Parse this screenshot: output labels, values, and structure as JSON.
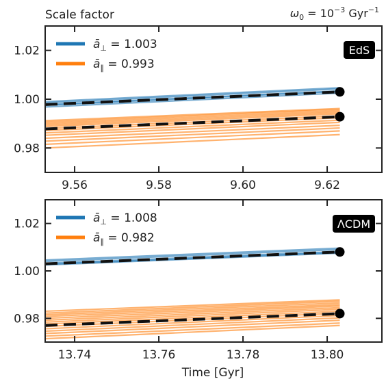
{
  "header": {
    "ylabel": "Scale factor",
    "omega_prefix": "ω",
    "omega_sub": "0",
    "omega_mid": " = 10",
    "omega_exp": "−3",
    "omega_unit": " Gyr",
    "omega_unit_exp": "−1"
  },
  "xlabel": "Time [Gyr]",
  "colors": {
    "perp": "#1f77b4",
    "par": "#ff7f0e",
    "mean": "#111111",
    "marker": "#000000"
  },
  "chart_data": [
    {
      "type": "line",
      "badge": "EdS",
      "xlim": [
        9.553,
        9.633
      ],
      "ylim": [
        0.97,
        1.03
      ],
      "xticks": [
        "9.56",
        "9.58",
        "9.60",
        "9.62"
      ],
      "yticks": [
        "0.98",
        "1.00",
        "1.02"
      ],
      "legend": [
        {
          "symbol": "ā",
          "sub": "⊥",
          "value": " = 1.003",
          "color": "perp"
        },
        {
          "symbol": "ā",
          "sub": "∥",
          "value": " = 0.993",
          "color": "par"
        }
      ],
      "t_end": 9.623,
      "perp_lines": [
        [
          0.9975,
          1.0032
        ],
        [
          0.9985,
          1.0042
        ],
        [
          0.9968,
          1.0025
        ],
        [
          0.999,
          1.0047
        ],
        [
          0.9978,
          1.0034
        ]
      ],
      "par_lines": [
        [
          0.9862,
          0.9914
        ],
        [
          0.9872,
          0.9924
        ],
        [
          0.988,
          0.9932
        ],
        [
          0.9888,
          0.994
        ],
        [
          0.9894,
          0.9946
        ],
        [
          0.99,
          0.9952
        ],
        [
          0.9906,
          0.9958
        ],
        [
          0.9912,
          0.9962
        ],
        [
          0.9852,
          0.9905
        ],
        [
          0.984,
          0.9893
        ],
        [
          0.9828,
          0.9882
        ],
        [
          0.9815,
          0.987
        ],
        [
          0.98,
          0.9855
        ]
      ],
      "perp_mean": [
        0.9978,
        1.003
      ],
      "par_mean": [
        0.9878,
        0.9928
      ]
    },
    {
      "type": "line",
      "badge": "ΛCDM",
      "xlim": [
        13.733,
        13.813
      ],
      "ylim": [
        0.97,
        1.03
      ],
      "xticks": [
        "13.74",
        "13.76",
        "13.78",
        "13.80"
      ],
      "yticks": [
        "0.98",
        "1.00",
        "1.02"
      ],
      "legend": [
        {
          "symbol": "ā",
          "sub": "⊥",
          "value": " = 1.008",
          "color": "perp"
        },
        {
          "symbol": "ā",
          "sub": "∥",
          "value": " = 0.982",
          "color": "par"
        }
      ],
      "t_end": 13.803,
      "perp_lines": [
        [
          1.0025,
          1.0075
        ],
        [
          1.0032,
          1.0082
        ],
        [
          1.004,
          1.009
        ],
        [
          1.0046,
          1.0096
        ],
        [
          1.0028,
          1.0078
        ]
      ],
      "par_lines": [
        [
          0.9822,
          0.9872
        ],
        [
          0.9815,
          0.9865
        ],
        [
          0.9808,
          0.9858
        ],
        [
          0.98,
          0.9852
        ],
        [
          0.9792,
          0.9845
        ],
        [
          0.9784,
          0.9838
        ],
        [
          0.9776,
          0.983
        ],
        [
          0.9766,
          0.9822
        ],
        [
          0.9756,
          0.9812
        ],
        [
          0.9746,
          0.9802
        ],
        [
          0.9736,
          0.9792
        ],
        [
          0.9725,
          0.978
        ],
        [
          0.9714,
          0.977
        ],
        [
          0.983,
          0.9878
        ]
      ],
      "perp_mean": [
        1.003,
        1.008
      ],
      "par_mean": [
        0.977,
        0.982
      ]
    }
  ]
}
